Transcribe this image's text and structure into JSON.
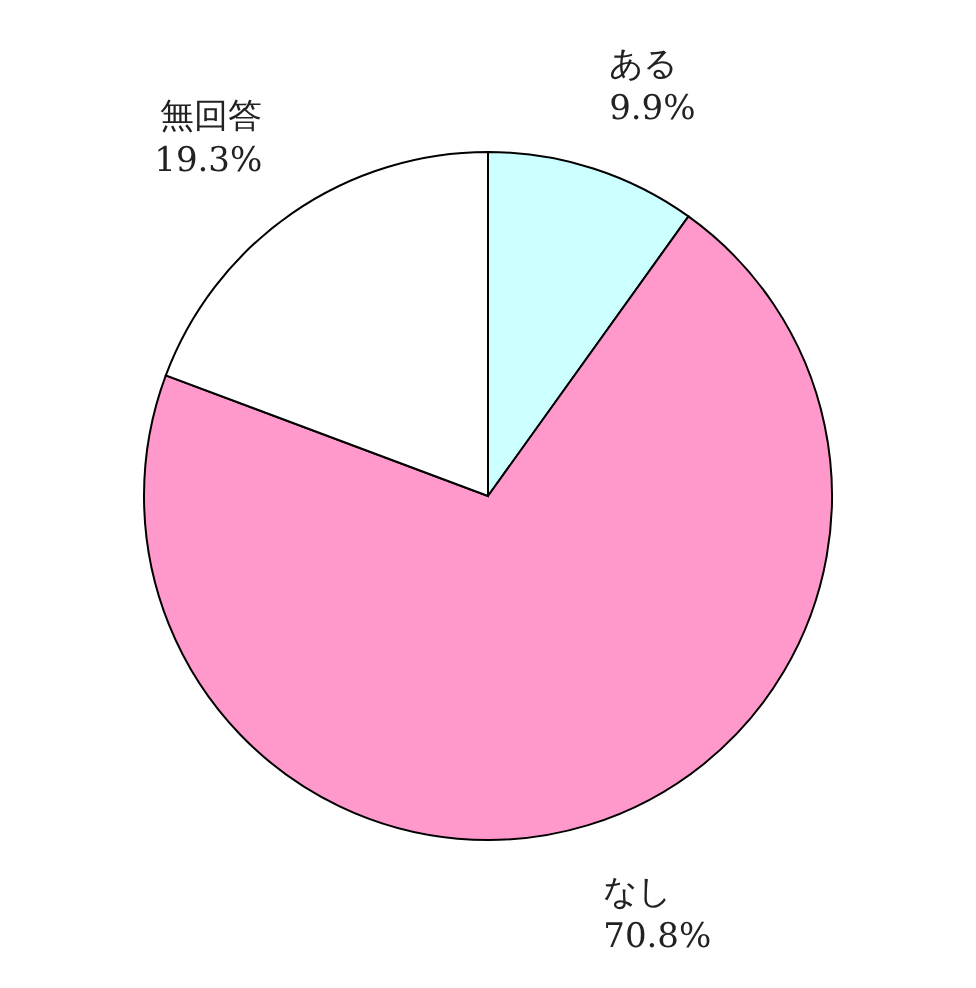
{
  "chart_data": {
    "type": "pie",
    "categories": [
      "ある",
      "なし",
      "無回答"
    ],
    "values": [
      9.9,
      70.8,
      19.3
    ],
    "value_labels": [
      "9.9%",
      "70.8%",
      "19.3%"
    ],
    "colors": [
      "#ccffff",
      "#ff99cc",
      "#ffffff"
    ]
  }
}
